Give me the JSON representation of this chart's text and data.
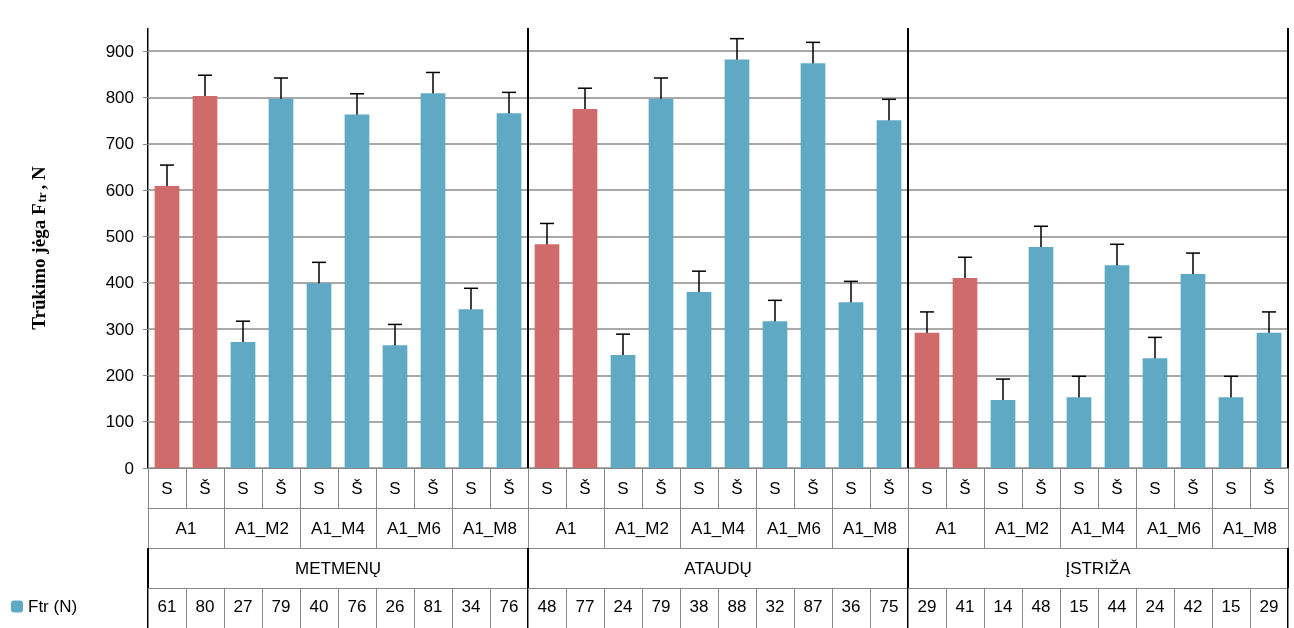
{
  "chart_data": {
    "type": "bar",
    "ylabel": "Trūkimo jėga F$_{tr}$, N",
    "categories": [
      "S",
      "Š",
      "S",
      "Š",
      "S",
      "Š",
      "S",
      "Š",
      "S",
      "Š",
      "S",
      "Š",
      "S",
      "Š",
      "S",
      "Š",
      "S",
      "Š",
      "S",
      "Š",
      "S",
      "Š",
      "S",
      "Š",
      "S",
      "Š",
      "S",
      "Š",
      "S",
      "Š"
    ],
    "annotations": [
      "61",
      "80",
      "27",
      "79",
      "40",
      "76",
      "26",
      "81",
      "34",
      "76",
      "48",
      "77",
      "24",
      "79",
      "38",
      "88",
      "32",
      "87",
      "36",
      "75",
      "29",
      "41",
      "14",
      "48",
      "15",
      "44",
      "24",
      "42",
      "15",
      "29",
      "A1",
      "A1_M2",
      "A1_M4",
      "A1_M6",
      "A1_M8",
      "A1",
      "A1_M2",
      "A1_M4",
      "A1_M6",
      "A1_M8",
      "A1",
      "A1_M2",
      "A1_M4",
      "A1_M6",
      "A1_M8",
      "METMENŲ",
      "ATAUDŲ",
      "ĮSTRIŽA"
    ],
    "series": [
      {
        "name": "Ftr (N)",
        "color": "#5fa9c5",
        "values": [
          609,
          803,
          272,
          797,
          399,
          763,
          265,
          809,
          343,
          766,
          483,
          775,
          244,
          797,
          380,
          882,
          317,
          874,
          358,
          751,
          292,
          410,
          147,
          477,
          153,
          438,
          237,
          419,
          153,
          292
        ],
        "colors": [
          "#d06b6b",
          "#d06b6b",
          "#5fa9c5",
          "#5fa9c5",
          "#5fa9c5",
          "#5fa9c5",
          "#5fa9c5",
          "#5fa9c5",
          "#5fa9c5",
          "#5fa9c5",
          "#d06b6b",
          "#d06b6b",
          "#5fa9c5",
          "#5fa9c5",
          "#5fa9c5",
          "#5fa9c5",
          "#5fa9c5",
          "#5fa9c5",
          "#5fa9c5",
          "#5fa9c5",
          "#d06b6b",
          "#d06b6b",
          "#5fa9c5",
          "#5fa9c5",
          "#5fa9c5",
          "#5fa9c5",
          "#5fa9c5",
          "#5fa9c5",
          "#5fa9c5",
          "#5fa9c5"
        ],
        "errors": [
          45,
          45,
          45,
          45,
          45,
          45,
          45,
          45,
          45,
          45,
          45,
          45,
          45,
          45,
          45,
          45,
          45,
          45,
          45,
          45,
          45,
          45,
          45,
          45,
          45,
          45,
          45,
          45,
          45,
          45
        ]
      }
    ],
    "ylim": [
      0,
      950
    ],
    "yticks": [
      0,
      100,
      200,
      300,
      400,
      500,
      600,
      700,
      800,
      900
    ],
    "grid": "y",
    "legend": "bottom left"
  }
}
